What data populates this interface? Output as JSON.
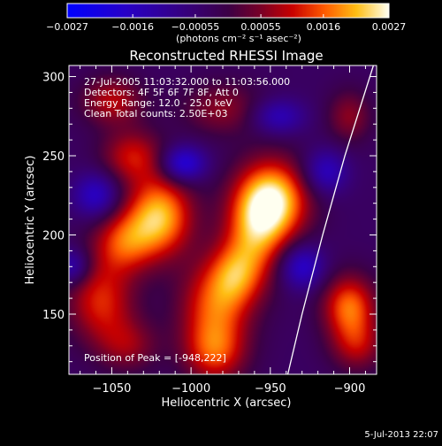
{
  "chart_data": {
    "type": "heatmap",
    "title": "Reconstructed RHESSI Image",
    "xlabel": "Heliocentric X (arcsec)",
    "ylabel": "Heliocentric Y (arcsec)",
    "xlim": [
      -1077,
      -883
    ],
    "ylim": [
      112,
      307
    ],
    "x_ticks": [
      -1050,
      -1000,
      -950,
      -900
    ],
    "x_tick_labels": [
      "−1050",
      "−1000",
      "−950",
      "−900"
    ],
    "y_ticks": [
      150,
      200,
      250,
      300
    ],
    "y_tick_labels": [
      "150",
      "200",
      "250",
      "300"
    ],
    "colorbar": {
      "min": -0.0027,
      "max": 0.0027,
      "ticks": [
        -0.0027,
        -0.0016,
        -0.00055,
        0.00055,
        0.0016,
        0.0027
      ],
      "tick_labels": [
        "−0.0027",
        "−0.0016",
        "−0.00055",
        "0.00055",
        "0.0016",
        "0.0027"
      ],
      "units_label": "(photons cm⁻² s⁻¹ asec⁻²)"
    },
    "info_lines": [
      "27-Jul-2005 11:03:32.000 to 11:03:56.000",
      "Detectors: 4F 5F 6F 7F 8F, Att 0",
      "Energy Range: 12.0 - 25.0 keV",
      "Clean     Total counts: 2.50E+03"
    ],
    "peak_label": "Position of Peak = [-948,222]",
    "peak": [
      -948,
      222
    ],
    "limb_curve": [
      [
        -939,
        112
      ],
      [
        -930,
        150
      ],
      [
        -917,
        200
      ],
      [
        -903,
        250
      ],
      [
        -885,
        307
      ]
    ],
    "sources": [
      {
        "x": -948,
        "y": 222,
        "amp": 0.0027,
        "sx": 16,
        "sy": 18
      },
      {
        "x": -960,
        "y": 200,
        "amp": 0.0017,
        "sx": 14,
        "sy": 22
      },
      {
        "x": -972,
        "y": 175,
        "amp": 0.0013,
        "sx": 12,
        "sy": 14
      },
      {
        "x": -985,
        "y": 155,
        "amp": 0.0018,
        "sx": 16,
        "sy": 20
      },
      {
        "x": -985,
        "y": 125,
        "amp": 0.0015,
        "sx": 14,
        "sy": 14
      },
      {
        "x": -1020,
        "y": 212,
        "amp": 0.0025,
        "sx": 15,
        "sy": 18
      },
      {
        "x": -1043,
        "y": 195,
        "amp": 0.0016,
        "sx": 14,
        "sy": 14
      },
      {
        "x": -1037,
        "y": 250,
        "amp": 0.0014,
        "sx": 14,
        "sy": 12
      },
      {
        "x": -1050,
        "y": 285,
        "amp": 0.0013,
        "sx": 14,
        "sy": 11
      },
      {
        "x": -980,
        "y": 280,
        "amp": 0.001,
        "sx": 18,
        "sy": 12
      },
      {
        "x": -1057,
        "y": 158,
        "amp": 0.0016,
        "sx": 15,
        "sy": 18
      },
      {
        "x": -1040,
        "y": 130,
        "amp": 0.001,
        "sx": 14,
        "sy": 12
      },
      {
        "x": -900,
        "y": 155,
        "amp": 0.002,
        "sx": 12,
        "sy": 14
      },
      {
        "x": -895,
        "y": 130,
        "amp": 0.0012,
        "sx": 12,
        "sy": 12
      },
      {
        "x": -900,
        "y": 275,
        "amp": 0.001,
        "sx": 10,
        "sy": 12
      },
      {
        "x": -1005,
        "y": 245,
        "amp": -0.0018,
        "sx": 10,
        "sy": 8
      },
      {
        "x": -930,
        "y": 180,
        "amp": -0.0015,
        "sx": 10,
        "sy": 10
      },
      {
        "x": -1060,
        "y": 225,
        "amp": -0.0014,
        "sx": 10,
        "sy": 10
      },
      {
        "x": -915,
        "y": 240,
        "amp": -0.0013,
        "sx": 10,
        "sy": 10
      },
      {
        "x": -1075,
        "y": 180,
        "amp": -0.0012,
        "sx": 8,
        "sy": 8
      },
      {
        "x": -945,
        "y": 275,
        "amp": -0.0012,
        "sx": 12,
        "sy": 8
      }
    ],
    "background": -0.00035
  },
  "footer": {
    "timestamp": "5-Jul-2013 22:07"
  }
}
